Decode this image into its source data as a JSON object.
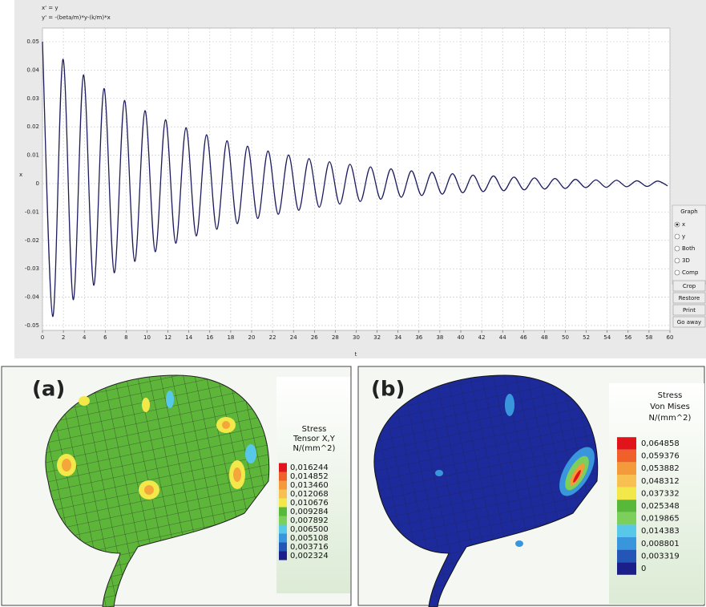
{
  "chart_data": {
    "type": "line",
    "color": "#1c1c5e",
    "equations": [
      "x' = y",
      "y' = -(beta/m)*y-(k/m)*x"
    ],
    "xlabel": "t",
    "ylabel": "x",
    "x": [
      0,
      0.98,
      1.96,
      2.94,
      3.92,
      4.9,
      5.88,
      6.86,
      7.84,
      8.82,
      9.8,
      10.78,
      11.76,
      12.74,
      13.72,
      14.7,
      15.68,
      16.66,
      17.64,
      18.62,
      19.6,
      20.58,
      21.56,
      22.54,
      23.52,
      24.5,
      25.48,
      26.46,
      27.44,
      28.42,
      29.4,
      30.38,
      31.36,
      32.34,
      33.32,
      34.3,
      35.28,
      36.26,
      37.24,
      38.22,
      39.2,
      40.18,
      41.16,
      42.14,
      43.12,
      44.1,
      45.08,
      46.06,
      47.04,
      48.02,
      49,
      49.98,
      50.96,
      51.94,
      52.92,
      53.9,
      54.88,
      55.86,
      56.84,
      57.82,
      58.8,
      59.78
    ],
    "values": [
      0.05,
      -0.0468,
      0.0438,
      -0.0409,
      0.0383,
      -0.0358,
      0.0335,
      -0.0314,
      0.0293,
      -0.0274,
      0.0257,
      -0.024,
      0.0225,
      -0.021,
      0.0197,
      -0.0184,
      0.0172,
      -0.0161,
      0.0151,
      -0.0141,
      0.0132,
      -0.0123,
      0.0115,
      -0.0108,
      0.0101,
      -0.0094,
      0.0088,
      -0.0083,
      0.0077,
      -0.0072,
      0.0068,
      -0.0063,
      0.0059,
      -0.0055,
      0.0052,
      -0.0048,
      0.0045,
      -0.0042,
      0.004,
      -0.0037,
      0.0035,
      -0.0032,
      0.003,
      -0.0028,
      0.0027,
      -0.0025,
      0.0023,
      -0.0022,
      0.002,
      -0.0019,
      0.0018,
      -0.0017,
      0.0015,
      -0.0014,
      0.0013,
      -0.0013,
      0.0012,
      -0.0011,
      0.001,
      -0.001,
      0.0009,
      -0.0008
    ],
    "xlim": [
      0,
      60
    ],
    "xticks": [
      0,
      2,
      4,
      6,
      8,
      10,
      12,
      14,
      16,
      18,
      20,
      22,
      24,
      26,
      28,
      30,
      32,
      34,
      36,
      38,
      40,
      42,
      44,
      46,
      48,
      50,
      52,
      54,
      56,
      58,
      60
    ],
    "ylim": [
      -0.0517,
      0.0548
    ],
    "yticks": [
      -0.05,
      -0.04,
      -0.03,
      -0.02,
      -0.01,
      0,
      0.01,
      0.02,
      0.03,
      0.04,
      0.05
    ],
    "grid": true
  },
  "controls": {
    "title": "Graph",
    "options": [
      "x",
      "y",
      "Both",
      "3D",
      "Comp"
    ],
    "selected": 0,
    "buttons": [
      "Crop",
      "Restore",
      "Print",
      "Go away"
    ]
  },
  "panels": [
    {
      "label": "(a)",
      "legend": {
        "title": [
          "Stress",
          "Tensor X,Y",
          "N/(mm^2)"
        ],
        "values": [
          "0,016244",
          "0,014852",
          "0,013460",
          "0,012068",
          "0,010676",
          "0,009284",
          "0,007892",
          "0,006500",
          "0,005108",
          "0,003716",
          "0,002324"
        ],
        "colors": [
          "#e0141a",
          "#f0602a",
          "#f59a3a",
          "#f8c050",
          "#f2e84a",
          "#58b83a",
          "#7ccf5a",
          "#58c8e8",
          "#3a96dc",
          "#2456b8",
          "#1a1f8a"
        ]
      }
    },
    {
      "label": "(b)",
      "legend": {
        "title": [
          "Stress",
          "Von Mises",
          "N/(mm^2)"
        ],
        "values": [
          "0,064858",
          "0,059376",
          "0,053882",
          "0,048312",
          "0,037332",
          "0,025348",
          "0,019865",
          "0,014383",
          "0,008801",
          "0,003319",
          "0"
        ],
        "colors": [
          "#e0141a",
          "#f0602a",
          "#f59a3a",
          "#f8c050",
          "#f2e84a",
          "#58b83a",
          "#7ccf5a",
          "#58c8e8",
          "#3a96dc",
          "#2456b8",
          "#1a1f8a"
        ]
      }
    }
  ]
}
